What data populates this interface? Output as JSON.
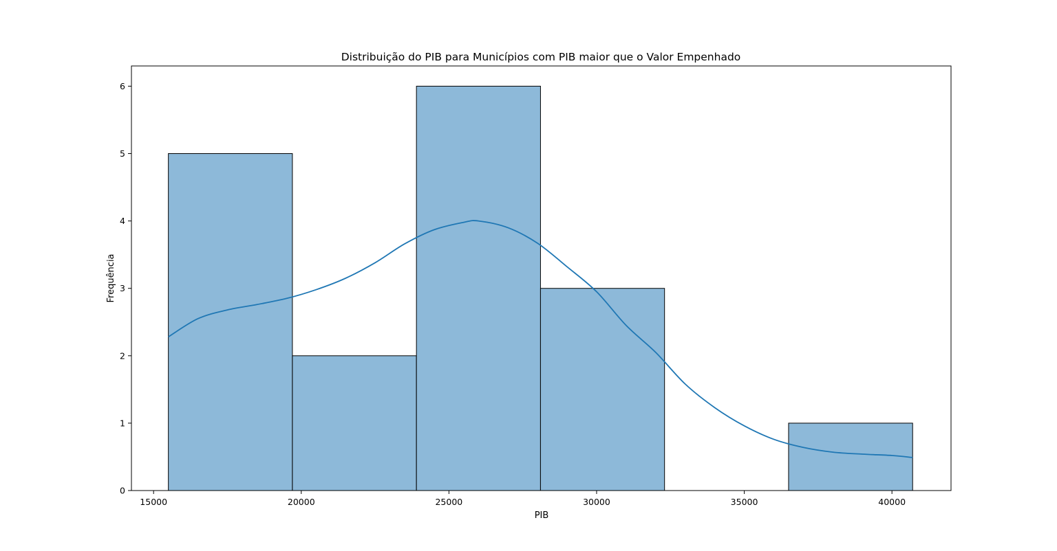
{
  "chart_data": {
    "type": "bar",
    "subtype": "histogram-with-kde",
    "title": "Distribuição do PIB para Municípios com PIB maior que o Valor Empenhado",
    "xlabel": "PIB",
    "ylabel": "Frequência",
    "xlim": [
      14250,
      42000
    ],
    "ylim": [
      0,
      6.3
    ],
    "x_ticks": [
      15000,
      20000,
      25000,
      30000,
      35000,
      40000
    ],
    "y_ticks": [
      0,
      1,
      2,
      3,
      4,
      5,
      6
    ],
    "grid": false,
    "legend": "none",
    "bins": [
      {
        "x0": 15500,
        "x1": 19700,
        "count": 5
      },
      {
        "x0": 19700,
        "x1": 23900,
        "count": 2
      },
      {
        "x0": 23900,
        "x1": 28100,
        "count": 6
      },
      {
        "x0": 28100,
        "x1": 32300,
        "count": 3
      },
      {
        "x0": 32300,
        "x1": 36500,
        "count": 0
      },
      {
        "x0": 36500,
        "x1": 40700,
        "count": 1
      }
    ],
    "kde": {
      "x": [
        15500,
        16500,
        17500,
        18500,
        19500,
        20500,
        21500,
        22500,
        23500,
        24500,
        25500,
        26000,
        27000,
        28000,
        29000,
        30000,
        31000,
        32000,
        33000,
        34000,
        35000,
        36000,
        37000,
        38000,
        39000,
        40000,
        40700
      ],
      "y": [
        2.28,
        2.55,
        2.68,
        2.76,
        2.85,
        2.98,
        3.15,
        3.38,
        3.66,
        3.87,
        3.98,
        4.0,
        3.9,
        3.67,
        3.32,
        2.95,
        2.45,
        2.05,
        1.58,
        1.23,
        0.96,
        0.76,
        0.64,
        0.57,
        0.54,
        0.52,
        0.49
      ]
    },
    "colors": {
      "bar_fill": "#8db9d9",
      "bar_edge": "#000000",
      "kde_line": "#1f77b4"
    }
  }
}
